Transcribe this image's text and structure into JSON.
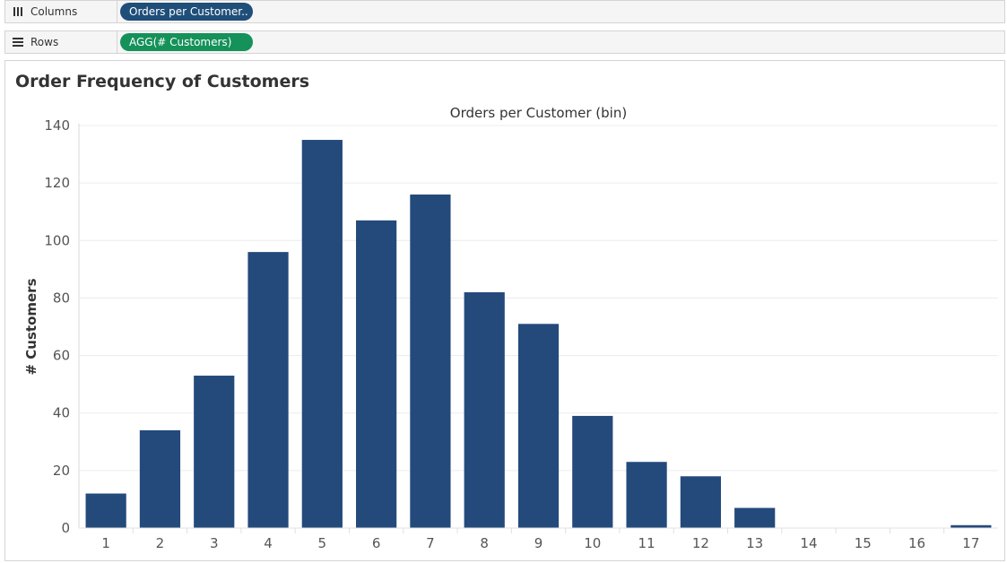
{
  "shelves": {
    "columns": {
      "label": "Columns",
      "pill": "Orders per Customer.."
    },
    "rows": {
      "label": "Rows",
      "pill": "AGG(# Customers)"
    }
  },
  "colors": {
    "bar": "#244a7c",
    "pill_columns": "#1f4e79",
    "pill_rows": "#15915a"
  },
  "chart_data": {
    "type": "bar",
    "title": "Order Frequency of Customers",
    "xlabel": "Orders per Customer (bin)",
    "ylabel": "# Customers",
    "categories": [
      "1",
      "2",
      "3",
      "4",
      "5",
      "6",
      "7",
      "8",
      "9",
      "10",
      "11",
      "12",
      "13",
      "14",
      "15",
      "16",
      "17"
    ],
    "values": [
      12,
      34,
      53,
      96,
      135,
      107,
      116,
      82,
      71,
      39,
      23,
      18,
      7,
      0,
      0,
      0,
      1
    ],
    "ylim": [
      0,
      140
    ],
    "yticks": [
      0,
      20,
      40,
      60,
      80,
      100,
      120,
      140
    ],
    "grid": true
  }
}
